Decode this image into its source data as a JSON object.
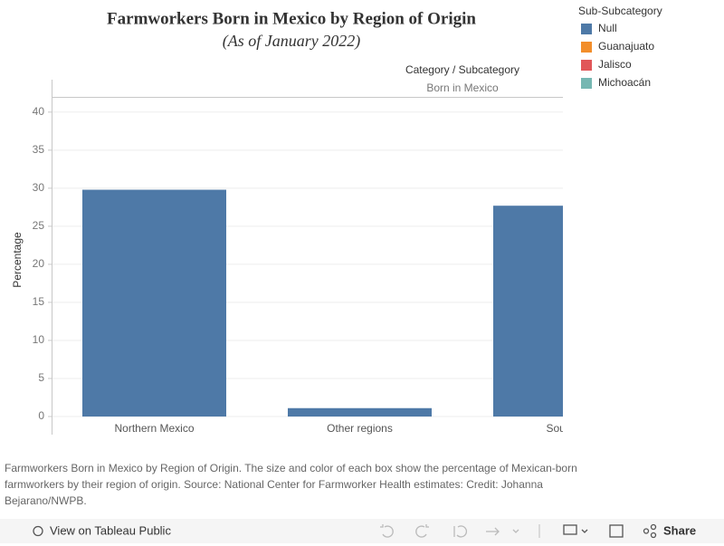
{
  "chart_data": {
    "type": "bar",
    "title": "Farmworkers Born in Mexico by Region of Origin",
    "subtitle": "(As of January 2022)",
    "header_title": "Category / Subcategory",
    "header_value": "Born in Mexico",
    "y_label": "Percentage",
    "legend_title": "Sub-Subcategory",
    "categories": [
      "Northern Mexico",
      "Other regions",
      "Souther"
    ],
    "series": [
      {
        "name": "Null",
        "color": "#4e79a7",
        "values": [
          29.8,
          1.1,
          27.7
        ]
      },
      {
        "name": "Guanajuato",
        "color": "#f28e2b",
        "values": [
          null,
          null,
          null
        ]
      },
      {
        "name": "Jalisco",
        "color": "#e15759",
        "values": [
          null,
          null,
          null
        ]
      },
      {
        "name": "Michoacán",
        "color": "#76b7b2",
        "values": [
          null,
          null,
          null
        ]
      }
    ],
    "ylim": [
      0,
      42
    ],
    "yticks": [
      0,
      5,
      10,
      15,
      20,
      25,
      30,
      35,
      40
    ],
    "grid": true
  },
  "caption": "Farmworkers Born in Mexico by Region of Origin. The size and color of each box show the percentage of Mexican-born farmworkers by their region of origin. Source: National Center for Farmworker Health estimates: Credit: Johanna Bejarano/NWPB.",
  "toolbar": {
    "view": "View on Tableau Public",
    "share": "Share"
  }
}
